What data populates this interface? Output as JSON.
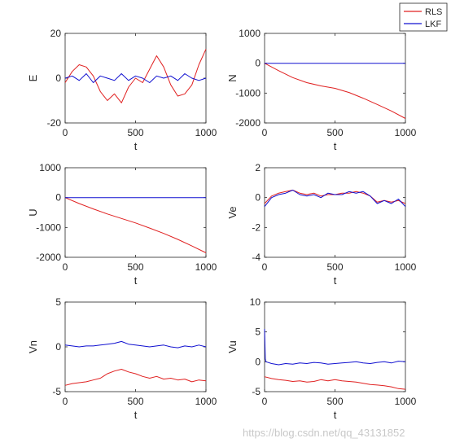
{
  "legend": {
    "placement": "top-right",
    "entries": [
      {
        "name": "RLS",
        "color": "#e02020"
      },
      {
        "name": "LKF",
        "color": "#1010d0"
      }
    ]
  },
  "watermark": "https://blog.csdn.net/qq_43131852",
  "chart_data": [
    {
      "type": "line",
      "xlabel": "t",
      "ylabel": "E",
      "xlim": [
        0,
        1000
      ],
      "ylim": [
        -20,
        20
      ],
      "xticks": [
        "0",
        "500",
        "1000"
      ],
      "yticks": [
        "20",
        "0",
        "-20"
      ],
      "series": [
        {
          "name": "RLS",
          "x": [
            0,
            50,
            100,
            150,
            200,
            250,
            300,
            350,
            400,
            450,
            500,
            550,
            600,
            650,
            700,
            750,
            800,
            850,
            900,
            950,
            1000
          ],
          "y": [
            -2,
            3,
            6,
            5,
            1,
            -6,
            -10,
            -7,
            -11,
            -4,
            0,
            -2,
            4,
            10,
            5,
            -3,
            -8,
            -7,
            -3,
            6,
            13
          ]
        },
        {
          "name": "LKF",
          "x": [
            0,
            50,
            100,
            150,
            200,
            250,
            300,
            350,
            400,
            450,
            500,
            550,
            600,
            650,
            700,
            750,
            800,
            850,
            900,
            950,
            1000
          ],
          "y": [
            0,
            1,
            -1,
            2,
            -2,
            1,
            0,
            -1,
            2,
            -1,
            1,
            0,
            -2,
            1,
            0,
            1,
            -1,
            2,
            0,
            -1,
            0
          ]
        }
      ]
    },
    {
      "type": "line",
      "xlabel": "t",
      "ylabel": "N",
      "xlim": [
        0,
        1000
      ],
      "ylim": [
        -2000,
        1000
      ],
      "xticks": [
        "0",
        "500",
        "1000"
      ],
      "yticks": [
        "1000",
        "0",
        "-1000",
        "-2000"
      ],
      "series": [
        {
          "name": "RLS",
          "x": [
            0,
            100,
            200,
            300,
            400,
            500,
            600,
            700,
            800,
            900,
            1000
          ],
          "y": [
            0,
            -250,
            -480,
            -650,
            -760,
            -840,
            -980,
            -1170,
            -1380,
            -1600,
            -1850
          ]
        },
        {
          "name": "LKF",
          "x": [
            0,
            1000
          ],
          "y": [
            0,
            0
          ]
        }
      ]
    },
    {
      "type": "line",
      "xlabel": "t",
      "ylabel": "U",
      "xlim": [
        0,
        1000
      ],
      "ylim": [
        -2000,
        1000
      ],
      "xticks": [
        "0",
        "500",
        "1000"
      ],
      "yticks": [
        "1000",
        "0",
        "-1000",
        "-2000"
      ],
      "series": [
        {
          "name": "RLS",
          "x": [
            0,
            100,
            200,
            300,
            400,
            500,
            600,
            700,
            800,
            900,
            1000
          ],
          "y": [
            0,
            -200,
            -380,
            -550,
            -700,
            -850,
            -1020,
            -1200,
            -1400,
            -1620,
            -1850
          ]
        },
        {
          "name": "LKF",
          "x": [
            0,
            1000
          ],
          "y": [
            0,
            0
          ]
        }
      ]
    },
    {
      "type": "line",
      "xlabel": "t",
      "ylabel": "Ve",
      "xlim": [
        0,
        1000
      ],
      "ylim": [
        -4,
        2
      ],
      "xticks": [
        "0",
        "500",
        "1000"
      ],
      "yticks": [
        "2",
        "0",
        "-2",
        "-4"
      ],
      "series": [
        {
          "name": "RLS",
          "x": [
            0,
            50,
            100,
            150,
            200,
            250,
            300,
            350,
            400,
            450,
            500,
            550,
            600,
            650,
            700,
            750,
            800,
            850,
            900,
            950,
            1000
          ],
          "y": [
            -0.4,
            0.1,
            0.3,
            0.4,
            0.5,
            0.3,
            0.2,
            0.3,
            0.1,
            0.2,
            0.2,
            0.3,
            0.3,
            0.4,
            0.3,
            0.1,
            -0.3,
            -0.2,
            -0.3,
            -0.2,
            -0.4
          ]
        },
        {
          "name": "LKF",
          "x": [
            0,
            50,
            100,
            150,
            200,
            250,
            300,
            350,
            400,
            450,
            500,
            550,
            600,
            650,
            700,
            750,
            800,
            850,
            900,
            950,
            1000
          ],
          "y": [
            -0.6,
            0.0,
            0.2,
            0.3,
            0.5,
            0.2,
            0.1,
            0.2,
            0.0,
            0.3,
            0.2,
            0.2,
            0.4,
            0.3,
            0.4,
            0.1,
            -0.4,
            -0.2,
            -0.4,
            -0.1,
            -0.6
          ]
        }
      ]
    },
    {
      "type": "line",
      "xlabel": "t",
      "ylabel": "Vn",
      "xlim": [
        0,
        1000
      ],
      "ylim": [
        -5,
        5
      ],
      "xticks": [
        "0",
        "500",
        "1000"
      ],
      "yticks": [
        "5",
        "0",
        "-5"
      ],
      "series": [
        {
          "name": "RLS",
          "x": [
            0,
            50,
            100,
            150,
            200,
            250,
            300,
            350,
            400,
            450,
            500,
            550,
            600,
            650,
            700,
            750,
            800,
            850,
            900,
            950,
            1000
          ],
          "y": [
            -4.3,
            -4.1,
            -4.0,
            -3.9,
            -3.7,
            -3.5,
            -3.0,
            -2.7,
            -2.5,
            -2.8,
            -3.0,
            -3.3,
            -3.5,
            -3.3,
            -3.6,
            -3.5,
            -3.7,
            -3.6,
            -3.9,
            -3.7,
            -3.8
          ]
        },
        {
          "name": "LKF",
          "x": [
            0,
            50,
            100,
            150,
            200,
            250,
            300,
            350,
            400,
            450,
            500,
            550,
            600,
            650,
            700,
            750,
            800,
            850,
            900,
            950,
            1000
          ],
          "y": [
            0.2,
            0.1,
            0.0,
            0.1,
            0.1,
            0.2,
            0.3,
            0.4,
            0.6,
            0.3,
            0.2,
            0.1,
            0.0,
            0.1,
            0.2,
            0.0,
            -0.1,
            0.1,
            0.0,
            0.2,
            0.0
          ]
        }
      ]
    },
    {
      "type": "line",
      "xlabel": "t",
      "ylabel": "Vu",
      "xlim": [
        0,
        1000
      ],
      "ylim": [
        -5,
        10
      ],
      "xticks": [
        "0",
        "500",
        "1000"
      ],
      "yticks": [
        "10",
        "5",
        "0",
        "-5"
      ],
      "series": [
        {
          "name": "RLS",
          "x": [
            0,
            50,
            100,
            150,
            200,
            250,
            300,
            350,
            400,
            450,
            500,
            550,
            600,
            650,
            700,
            750,
            800,
            850,
            900,
            950,
            1000
          ],
          "y": [
            -2.5,
            -2.8,
            -3.0,
            -3.1,
            -3.3,
            -3.2,
            -3.4,
            -3.3,
            -3.0,
            -3.2,
            -3.0,
            -3.2,
            -3.3,
            -3.4,
            -3.6,
            -3.8,
            -3.9,
            -4.0,
            -4.2,
            -4.5,
            -4.6
          ]
        },
        {
          "name": "LKF",
          "x": [
            0,
            5,
            10,
            50,
            100,
            150,
            200,
            250,
            300,
            350,
            400,
            450,
            500,
            550,
            600,
            650,
            700,
            750,
            800,
            850,
            900,
            950,
            1000
          ],
          "y": [
            5.5,
            0.5,
            0.0,
            -0.3,
            -0.5,
            -0.3,
            -0.4,
            -0.2,
            -0.3,
            -0.1,
            -0.2,
            -0.4,
            -0.3,
            -0.2,
            -0.1,
            0.0,
            -0.2,
            -0.3,
            -0.1,
            0.0,
            -0.2,
            0.1,
            0.0
          ]
        }
      ]
    }
  ]
}
